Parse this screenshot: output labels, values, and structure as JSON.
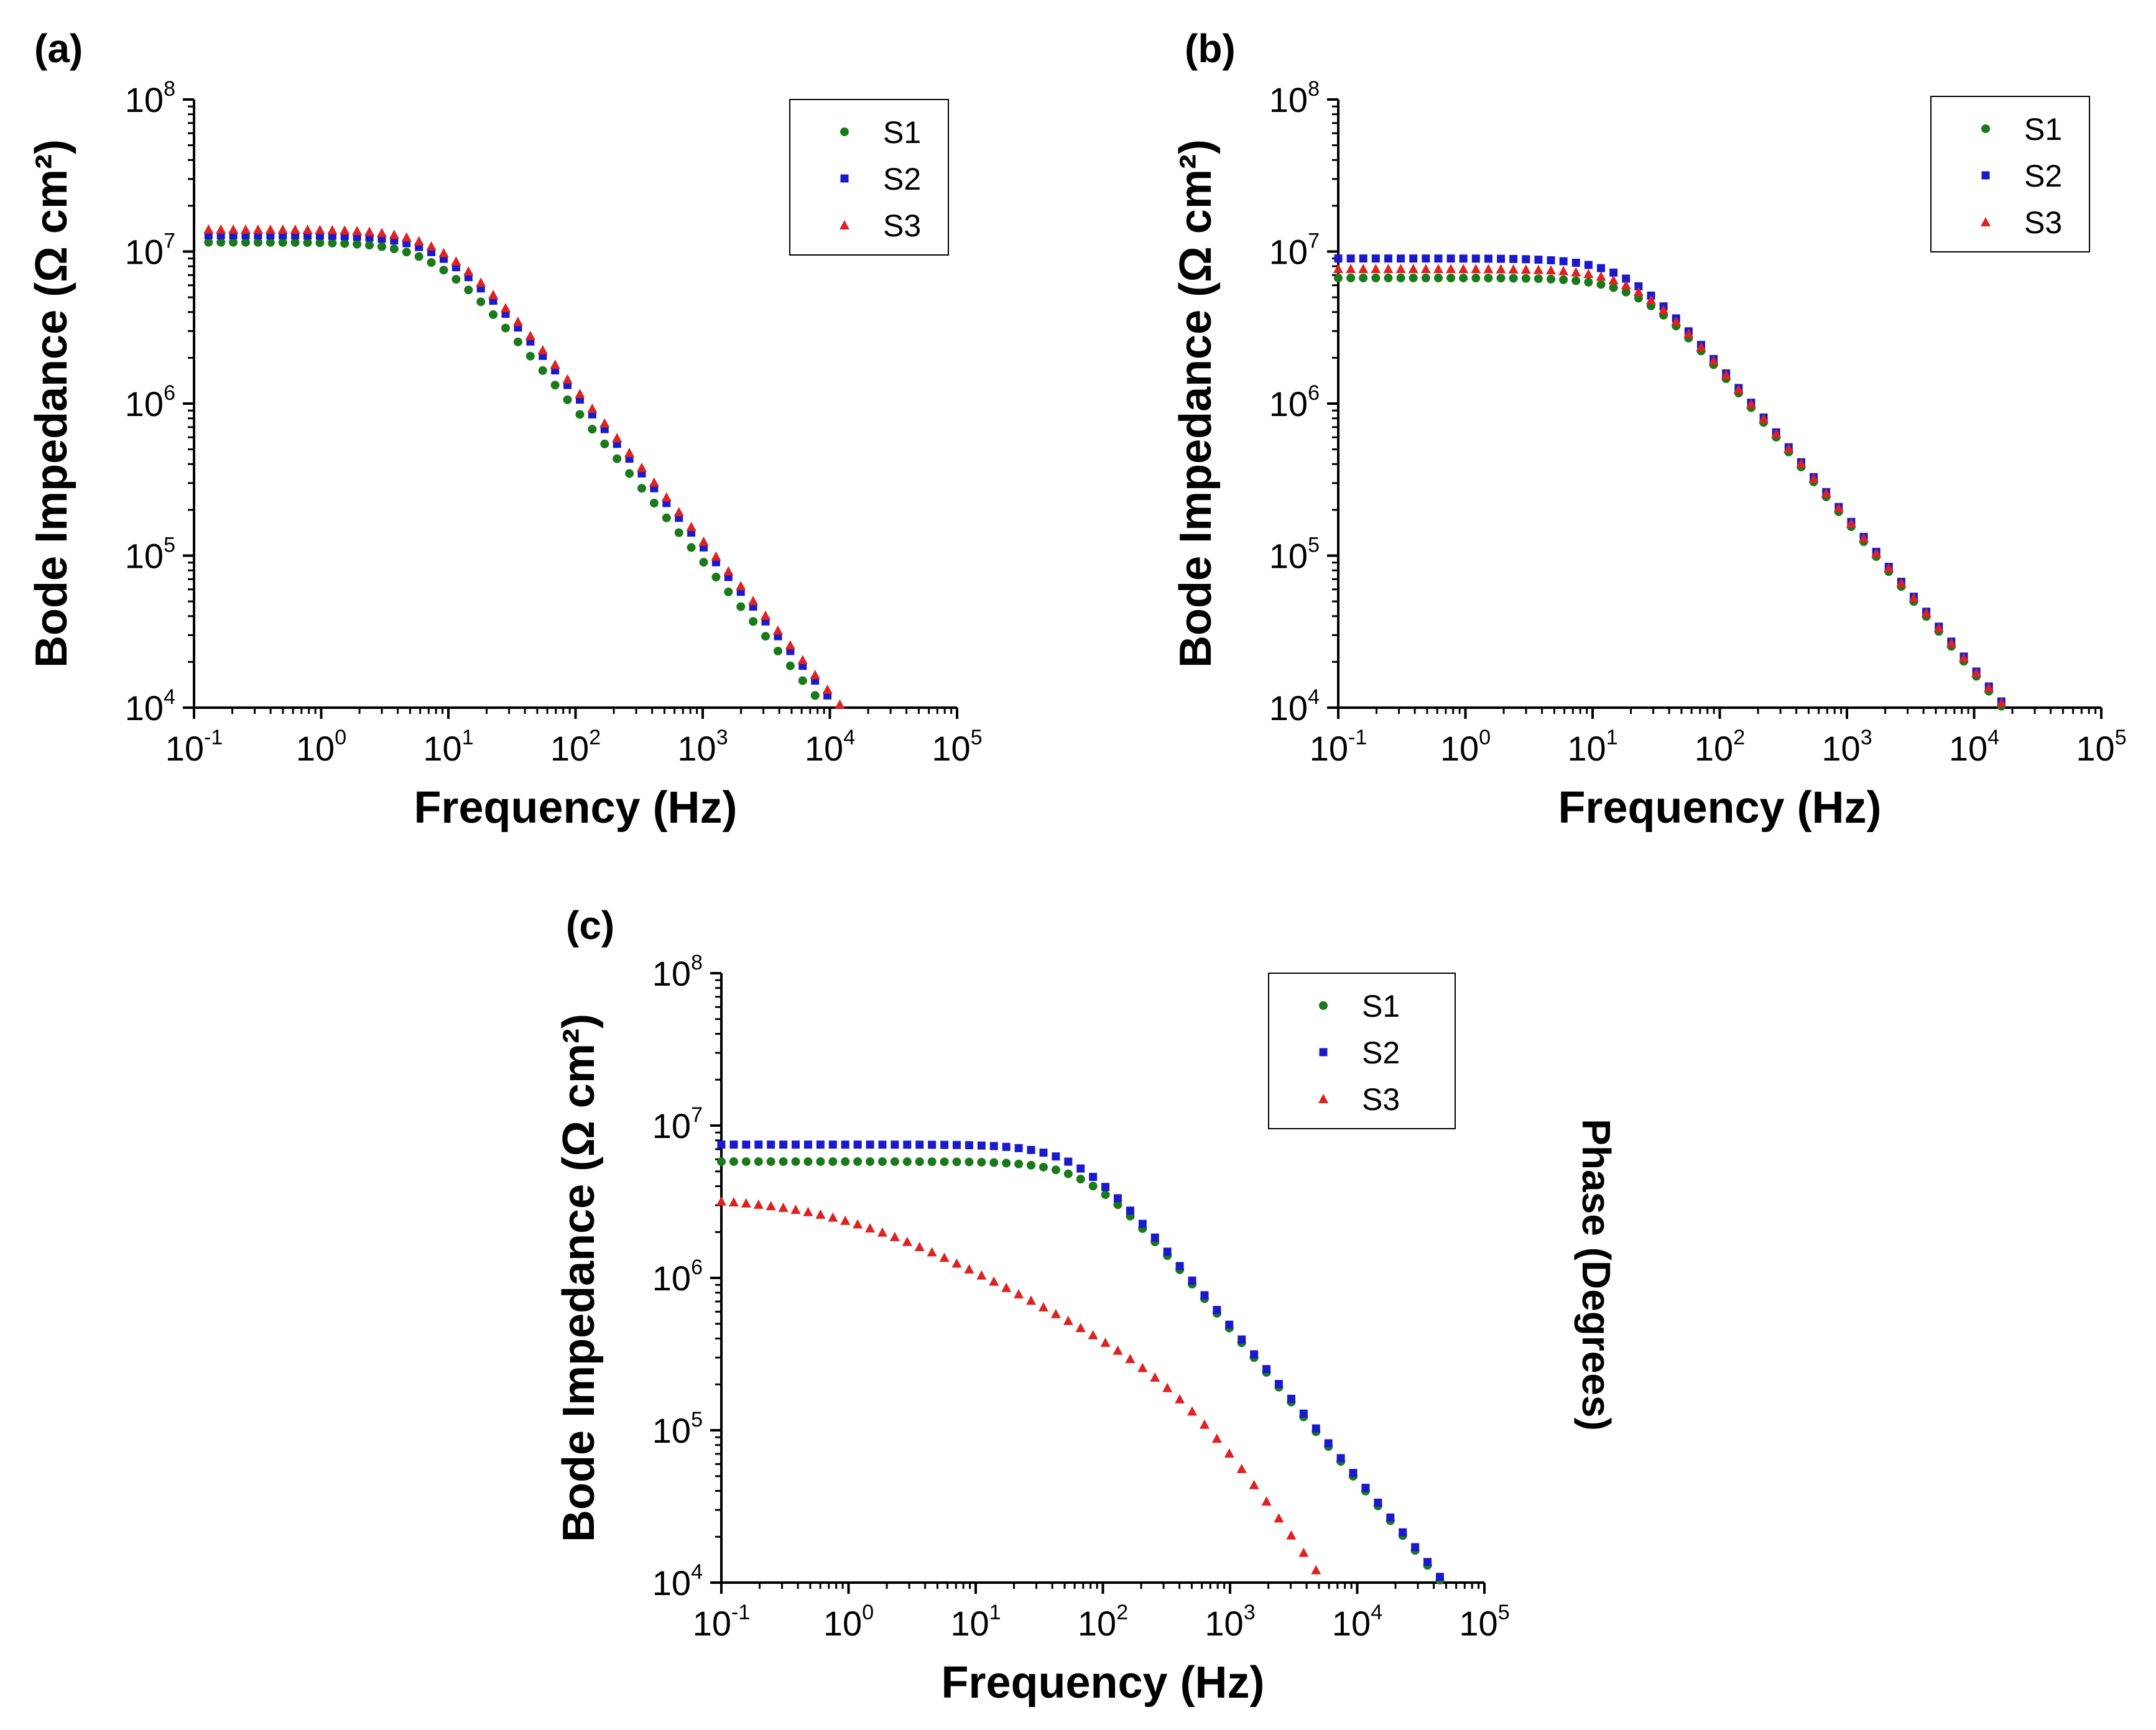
{
  "figure": {
    "right_axis_label": "Phase (Degrees)"
  },
  "chart_data": [
    {
      "panel": "(a)",
      "type": "scatter",
      "xscale": "log",
      "yscale": "log",
      "xlabel": "Frequency (Hz)",
      "ylabel": "Bode Impedance (Ω cm²)",
      "xlim": [
        0.1,
        100000
      ],
      "ylim": [
        10000,
        100000000
      ],
      "x_ticks": [
        "10^-1",
        "10^0",
        "10^1",
        "10^2",
        "10^3",
        "10^4",
        "10^5"
      ],
      "y_ticks": [
        "10^4",
        "10^5",
        "10^6",
        "10^7",
        "10^8"
      ],
      "legend": {
        "position": "top-right",
        "entries": [
          "S1",
          "S2",
          "S3"
        ]
      },
      "series": [
        {
          "name": "S1",
          "marker": "circle",
          "color": "#1a7a1a",
          "model": {
            "R_low": 11500000,
            "f_corner": 8,
            "n_low": 1.0,
            "R_mid": null,
            "f_mid": null,
            "f_start": 0.13,
            "f_end": 90000
          }
        },
        {
          "name": "S2",
          "marker": "square",
          "color": "#1a1acc",
          "model": {
            "R_low": 12800000,
            "f_corner": 9,
            "n_low": 1.0,
            "R_mid": null,
            "f_mid": null,
            "f_start": 0.13,
            "f_end": 90000
          }
        },
        {
          "name": "S3",
          "marker": "triangle",
          "color": "#dd2222",
          "model": {
            "R_low": 14000000,
            "f_corner": 9,
            "n_low": 1.0,
            "R_mid": null,
            "f_mid": null,
            "f_start": 0.13,
            "f_end": 90000
          }
        }
      ]
    },
    {
      "panel": "(b)",
      "type": "scatter",
      "xscale": "log",
      "yscale": "log",
      "xlabel": "Frequency (Hz)",
      "ylabel": "Bode Impedance (Ω cm²)",
      "xlim": [
        0.1,
        100000
      ],
      "ylim": [
        10000,
        100000000
      ],
      "x_ticks": [
        "10^-1",
        "10^0",
        "10^1",
        "10^2",
        "10^3",
        "10^4",
        "10^5"
      ],
      "y_ticks": [
        "10^4",
        "10^5",
        "10^6",
        "10^7",
        "10^8"
      ],
      "legend": {
        "position": "top-right",
        "entries": [
          "S1",
          "S2",
          "S3"
        ]
      },
      "series": [
        {
          "name": "S1",
          "marker": "circle",
          "color": "#1a7a1a",
          "model": {
            "R_low": 6700000,
            "f_corner": 25,
            "n_low": 1.0,
            "R_mid": null,
            "f_mid": null,
            "f_start": 0.1,
            "f_end": 80000
          }
        },
        {
          "name": "S2",
          "marker": "square",
          "color": "#1a1acc",
          "model": {
            "R_low": 9000000,
            "f_corner": 20,
            "n_low": 1.0,
            "R_mid": null,
            "f_mid": null,
            "f_start": 0.1,
            "f_end": 80000
          }
        },
        {
          "name": "S3",
          "marker": "triangle",
          "color": "#dd2222",
          "model": {
            "R_low": 7700000,
            "f_corner": 23,
            "n_low": 1.0,
            "R_mid": null,
            "f_mid": null,
            "f_start": 0.1,
            "f_end": 80000
          }
        }
      ]
    },
    {
      "panel": "(c)",
      "type": "scatter",
      "xscale": "log",
      "yscale": "log",
      "xlabel": "Frequency (Hz)",
      "ylabel": "Bode Impedance (Ω cm²)",
      "xlim": [
        0.1,
        100000
      ],
      "ylim": [
        10000,
        100000000
      ],
      "x_ticks": [
        "10^-1",
        "10^0",
        "10^1",
        "10^2",
        "10^3",
        "10^4",
        "10^5"
      ],
      "y_ticks": [
        "10^4",
        "10^5",
        "10^6",
        "10^7",
        "10^8"
      ],
      "legend": {
        "position": "top-right",
        "entries": [
          "S1",
          "S2",
          "S3"
        ]
      },
      "series": [
        {
          "name": "S1",
          "marker": "circle",
          "color": "#1a7a1a",
          "model": {
            "R_low": 5800000,
            "f_corner": 80,
            "n_low": 1.0,
            "R_mid": null,
            "f_mid": null,
            "f_start": 0.1,
            "f_end": 70000
          }
        },
        {
          "name": "S2",
          "marker": "square",
          "color": "#1a1acc",
          "model": {
            "R_low": 7500000,
            "f_corner": 65,
            "n_low": 1.0,
            "R_mid": null,
            "f_mid": null,
            "f_start": 0.1,
            "f_end": 70000
          }
        },
        {
          "name": "S3",
          "marker": "triangle",
          "color": "#dd2222",
          "model": {
            "R_low": 3400000,
            "f_corner": 0.9,
            "n_low": 0.45,
            "R_mid": 1000000,
            "f_mid": 450,
            "f_start": 0.1,
            "f_end": 70000
          }
        }
      ]
    }
  ]
}
